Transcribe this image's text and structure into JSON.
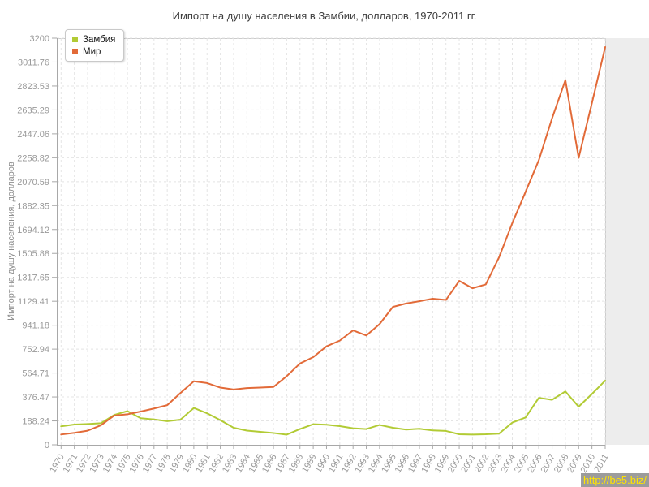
{
  "chart_data": {
    "type": "line",
    "title": "Импорт на душу населения в Замбии, долларов, 1970-2011 гг.",
    "ylabel": "Импорт на душу населения, долларов",
    "xlabel": "",
    "ylim": [
      0,
      3200
    ],
    "grid": true,
    "legend_position": "top-left",
    "ytick_labels": [
      "0",
      "188.24",
      "376.47",
      "564.71",
      "752.94",
      "941.18",
      "1129.41",
      "1317.65",
      "1505.88",
      "1694.12",
      "1882.35",
      "2070.59",
      "2258.82",
      "2447.06",
      "2635.29",
      "2823.53",
      "3011.76",
      "3200"
    ],
    "x": [
      1970,
      1971,
      1972,
      1973,
      1974,
      1975,
      1976,
      1977,
      1978,
      1979,
      1980,
      1981,
      1982,
      1983,
      1984,
      1985,
      1986,
      1987,
      1988,
      1989,
      1990,
      1991,
      1992,
      1993,
      1994,
      1995,
      1996,
      1997,
      1998,
      1999,
      2000,
      2001,
      2002,
      2003,
      2004,
      2005,
      2006,
      2007,
      2008,
      2009,
      2010,
      2011
    ],
    "series": [
      {
        "name": "Замбия",
        "color": "#b2cb35",
        "values": [
          145,
          160,
          164,
          170,
          235,
          265,
          209,
          200,
          186,
          198,
          290,
          248,
          194,
          134,
          112,
          102,
          93,
          80,
          124,
          162,
          158,
          147,
          130,
          124,
          156,
          134,
          120,
          126,
          113,
          109,
          83,
          81,
          83,
          88,
          175,
          215,
          370,
          354,
          420,
          300,
          400,
          505
        ]
      },
      {
        "name": "Мир",
        "color": "#e26a38",
        "values": [
          81,
          94,
          111,
          154,
          230,
          240,
          262,
          286,
          312,
          408,
          500,
          486,
          450,
          435,
          446,
          450,
          455,
          540,
          640,
          690,
          775,
          820,
          900,
          860,
          950,
          1085,
          1112,
          1130,
          1150,
          1140,
          1290,
          1232,
          1262,
          1475,
          1745,
          1990,
          2240,
          2570,
          2870,
          2258,
          2690,
          3130
        ]
      }
    ]
  },
  "watermark": {
    "text": "http://be5.biz/",
    "bg": "#9c9c9c",
    "color": "#ffe400"
  },
  "style_colors": {
    "grid": "#e4e4e4",
    "axis": "#a8a8a8",
    "plot_border": "#cccccc",
    "right_margin_fill": "#ededed",
    "tick_label": "#999999"
  }
}
